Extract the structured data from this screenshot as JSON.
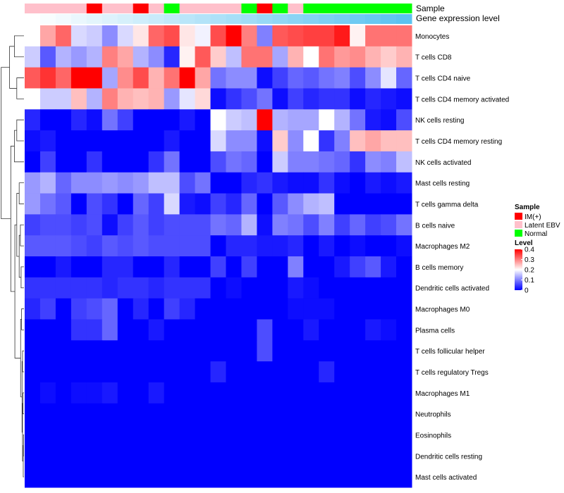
{
  "chart_data": {
    "type": "heatmap",
    "title": "",
    "annotation_labels": {
      "sample": "Sample",
      "gene": "Gene expression level"
    },
    "columns": 25,
    "sample_groups": [
      "Latent EBV",
      "Latent EBV",
      "Latent EBV",
      "Latent EBV",
      "IM(+)",
      "Latent EBV",
      "Latent EBV",
      "IM(+)",
      "Latent EBV",
      "Normal",
      "Latent EBV",
      "Latent EBV",
      "Latent EBV",
      "Latent EBV",
      "Normal",
      "IM(+)",
      "Normal",
      "Latent EBV",
      "Normal",
      "Normal",
      "Normal",
      "Normal",
      "Normal",
      "Normal",
      "Normal"
    ],
    "gene_expression_level": [
      0.0,
      0.04,
      0.08,
      0.13,
      0.17,
      0.21,
      0.25,
      0.29,
      0.33,
      0.38,
      0.42,
      0.46,
      0.5,
      0.54,
      0.58,
      0.63,
      0.67,
      0.71,
      0.75,
      0.79,
      0.83,
      0.88,
      0.92,
      0.96,
      1.0
    ],
    "rows": [
      "Monocytes",
      "T cells CD8",
      "T cells CD4 naive",
      "T cells CD4 memory activated",
      "NK cells resting",
      "T cells CD4 memory resting",
      "NK cells activated",
      "Mast cells resting",
      "T cells gamma delta",
      "B cells naive",
      "Macrophages M2",
      "B cells memory",
      "Dendritic cells activated",
      "Macrophages M0",
      "Plasma cells",
      "T cells follicular helper",
      "T cells regulatory  Tregs",
      "Macrophages M1",
      "Neutrophils",
      "Eosinophils",
      "Dendritic cells resting",
      "Mast cells activated"
    ],
    "values": [
      [
        0.2,
        0.27,
        0.32,
        0.17,
        0.16,
        0.11,
        0.17,
        0.22,
        0.32,
        0.34,
        0.22,
        0.19,
        0.34,
        0.4,
        0.3,
        0.1,
        0.33,
        0.34,
        0.35,
        0.35,
        0.38,
        0.21,
        0.31,
        0.31,
        0.31
      ],
      [
        0.16,
        0.07,
        0.14,
        0.12,
        0.14,
        0.3,
        0.27,
        0.14,
        0.11,
        0.03,
        0.21,
        0.33,
        0.24,
        0.15,
        0.31,
        0.31,
        0.13,
        0.26,
        0.2,
        0.31,
        0.28,
        0.29,
        0.26,
        0.24,
        0.26
      ],
      [
        0.33,
        0.36,
        0.32,
        0.4,
        0.4,
        0.13,
        0.29,
        0.34,
        0.26,
        0.31,
        0.4,
        0.27,
        0.09,
        0.11,
        0.11,
        0.01,
        0.05,
        0.08,
        0.07,
        0.09,
        0.1,
        0.06,
        0.11,
        0.18,
        0.08
      ],
      [
        0.2,
        0.16,
        0.16,
        0.25,
        0.14,
        0.3,
        0.26,
        0.25,
        0.26,
        0.12,
        0.18,
        0.23,
        0.01,
        0.04,
        0.06,
        0.09,
        0.01,
        0.05,
        0.03,
        0.04,
        0.04,
        0.01,
        0.03,
        0.02,
        0.01
      ],
      [
        0.03,
        0.0,
        0.0,
        0.03,
        0.01,
        0.09,
        0.05,
        0.0,
        0.0,
        0.0,
        0.02,
        0.0,
        0.2,
        0.16,
        0.15,
        0.4,
        0.14,
        0.13,
        0.13,
        0.2,
        0.14,
        0.09,
        0.02,
        0.01,
        0.06
      ],
      [
        0.01,
        0.02,
        0.0,
        0.0,
        0.0,
        0.0,
        0.0,
        0.0,
        0.0,
        0.02,
        0.0,
        0.0,
        0.17,
        0.11,
        0.11,
        0.01,
        0.24,
        0.11,
        0.2,
        0.04,
        0.1,
        0.25,
        0.27,
        0.25,
        0.25
      ],
      [
        0.0,
        0.05,
        0.0,
        0.0,
        0.04,
        0.0,
        0.0,
        0.0,
        0.04,
        0.09,
        0.0,
        0.0,
        0.06,
        0.09,
        0.08,
        0.0,
        0.16,
        0.1,
        0.1,
        0.09,
        0.08,
        0.04,
        0.11,
        0.1,
        0.15
      ],
      [
        0.12,
        0.14,
        0.08,
        0.11,
        0.11,
        0.12,
        0.11,
        0.12,
        0.15,
        0.15,
        0.06,
        0.09,
        0.0,
        0.0,
        0.03,
        0.04,
        0.02,
        0.01,
        0.01,
        0.04,
        0.01,
        0.0,
        0.02,
        0.01,
        0.02
      ],
      [
        0.12,
        0.09,
        0.07,
        0.0,
        0.06,
        0.04,
        0.0,
        0.08,
        0.05,
        0.17,
        0.02,
        0.01,
        0.05,
        0.03,
        0.08,
        0.0,
        0.07,
        0.11,
        0.14,
        0.15,
        0.0,
        0.0,
        0.0,
        0.0,
        0.0
      ],
      [
        0.05,
        0.06,
        0.06,
        0.05,
        0.06,
        0.01,
        0.05,
        0.07,
        0.05,
        0.06,
        0.06,
        0.06,
        0.09,
        0.08,
        0.14,
        0.01,
        0.1,
        0.09,
        0.06,
        0.1,
        0.05,
        0.08,
        0.05,
        0.06,
        0.09
      ],
      [
        0.07,
        0.07,
        0.07,
        0.06,
        0.05,
        0.07,
        0.06,
        0.07,
        0.06,
        0.06,
        0.06,
        0.06,
        0.0,
        0.03,
        0.03,
        0.02,
        0.02,
        0.03,
        0.0,
        0.02,
        0.0,
        0.01,
        0.0,
        0.0,
        0.01
      ],
      [
        0.0,
        0.0,
        0.02,
        0.0,
        0.0,
        0.03,
        0.03,
        0.0,
        0.0,
        0.03,
        0.0,
        0.0,
        0.05,
        0.0,
        0.05,
        0.0,
        0.0,
        0.1,
        0.0,
        0.0,
        0.02,
        0.05,
        0.07,
        0.02,
        0.0
      ],
      [
        0.04,
        0.04,
        0.04,
        0.04,
        0.04,
        0.03,
        0.04,
        0.04,
        0.03,
        0.04,
        0.04,
        0.04,
        0.0,
        0.01,
        0.0,
        0.0,
        0.0,
        0.02,
        0.01,
        0.0,
        0.0,
        0.0,
        0.0,
        0.0,
        0.0
      ],
      [
        0.03,
        0.05,
        0.0,
        0.05,
        0.06,
        0.08,
        0.0,
        0.03,
        0.0,
        0.05,
        0.03,
        0.0,
        0.0,
        0.0,
        0.0,
        0.0,
        0.0,
        0.01,
        0.01,
        0.01,
        0.0,
        0.0,
        0.0,
        0.0,
        0.0
      ],
      [
        0.0,
        0.0,
        0.0,
        0.04,
        0.04,
        0.08,
        0.0,
        0.0,
        0.02,
        0.0,
        0.0,
        0.0,
        0.0,
        0.0,
        0.0,
        0.06,
        0.0,
        0.0,
        0.02,
        0.0,
        0.0,
        0.0,
        0.02,
        0.01,
        0.0
      ],
      [
        0.0,
        0.0,
        0.0,
        0.0,
        0.0,
        0.0,
        0.0,
        0.0,
        0.0,
        0.0,
        0.0,
        0.0,
        0.0,
        0.0,
        0.0,
        0.06,
        0.0,
        0.0,
        0.0,
        0.0,
        0.0,
        0.0,
        0.0,
        0.0,
        0.0
      ],
      [
        0.0,
        0.0,
        0.0,
        0.0,
        0.0,
        0.0,
        0.0,
        0.0,
        0.0,
        0.0,
        0.0,
        0.0,
        0.03,
        0.0,
        0.0,
        0.0,
        0.0,
        0.0,
        0.0,
        0.03,
        0.0,
        0.0,
        0.0,
        0.0,
        0.0
      ],
      [
        0.0,
        0.01,
        0.0,
        0.01,
        0.01,
        0.02,
        0.0,
        0.0,
        0.02,
        0.0,
        0.0,
        0.0,
        0.0,
        0.0,
        0.0,
        0.0,
        0.0,
        0.0,
        0.0,
        0.0,
        0.0,
        0.0,
        0.0,
        0.0,
        0.0
      ],
      [
        0.0,
        0.0,
        0.0,
        0.0,
        0.0,
        0.0,
        0.0,
        0.0,
        0.0,
        0.0,
        0.0,
        0.0,
        0.0,
        0.0,
        0.0,
        0.0,
        0.0,
        0.0,
        0.0,
        0.0,
        0.0,
        0.0,
        0.0,
        0.0,
        0.0
      ],
      [
        0.0,
        0.0,
        0.0,
        0.0,
        0.0,
        0.0,
        0.0,
        0.0,
        0.0,
        0.0,
        0.0,
        0.0,
        0.0,
        0.0,
        0.0,
        0.0,
        0.0,
        0.0,
        0.0,
        0.0,
        0.0,
        0.0,
        0.0,
        0.0,
        0.0
      ],
      [
        0.0,
        0.0,
        0.0,
        0.0,
        0.0,
        0.0,
        0.0,
        0.0,
        0.0,
        0.0,
        0.0,
        0.0,
        0.0,
        0.0,
        0.0,
        0.0,
        0.0,
        0.0,
        0.0,
        0.0,
        0.0,
        0.0,
        0.0,
        0.0,
        0.0
      ],
      [
        0.0,
        0.0,
        0.0,
        0.0,
        0.0,
        0.0,
        0.0,
        0.0,
        0.0,
        0.0,
        0.0,
        0.0,
        0.0,
        0.0,
        0.0,
        0.0,
        0.0,
        0.0,
        0.0,
        0.0,
        0.0,
        0.0,
        0.0,
        0.0,
        0.0
      ]
    ],
    "color_scale": {
      "min": 0,
      "max": 0.4,
      "low": "#0000ff",
      "mid": "#ffffff",
      "high": "#ff0000",
      "mid_value": 0.2
    },
    "legend_sample": {
      "title": "Sample",
      "entries": [
        {
          "label": "IM(+)",
          "color": "#ff0000"
        },
        {
          "label": "Latent EBV",
          "color": "#ffc0cb"
        },
        {
          "label": "Normal",
          "color": "#00ff00"
        }
      ]
    },
    "legend_level": {
      "title": "Level",
      "ticks": [
        {
          "label": "0.4",
          "value": 0.4
        },
        {
          "label": "0.3",
          "value": 0.3
        },
        {
          "label": "0.2",
          "value": 0.2
        },
        {
          "label": "0.1",
          "value": 0.1
        },
        {
          "label": "0",
          "value": 0.0
        }
      ]
    },
    "gene_bar_colors": {
      "low": "#ffffff",
      "high": "#5bc3f0"
    },
    "row_dendrogram": true,
    "legend_position": "right"
  }
}
